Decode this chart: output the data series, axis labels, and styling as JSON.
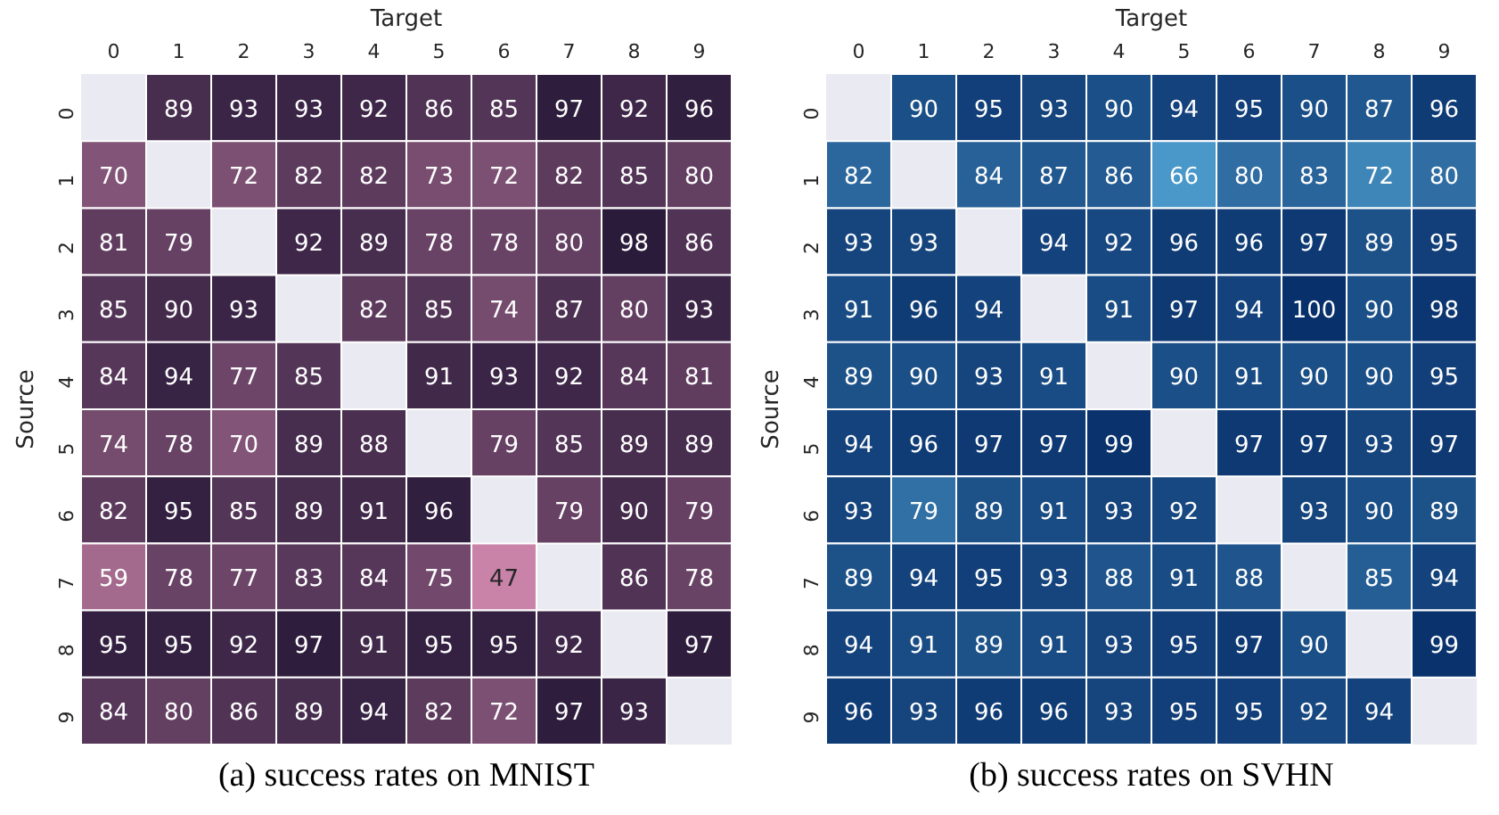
{
  "chart_data": [
    {
      "type": "heatmap",
      "xlabel": "Target",
      "ylabel": "Source",
      "annotations": [
        "(a) success rates on MNIST"
      ],
      "data_labels": true,
      "colors": [
        "#c982a8",
        "#2b1b3b"
      ],
      "categories": [
        "0",
        "1",
        "2",
        "3",
        "4",
        "5",
        "6",
        "7",
        "8",
        "9"
      ],
      "y_categories": [
        "0",
        "1",
        "2",
        "3",
        "4",
        "5",
        "6",
        "7",
        "8",
        "9"
      ],
      "cells": [
        [
          null,
          89,
          93,
          93,
          92,
          86,
          85,
          97,
          92,
          96
        ],
        [
          70,
          null,
          72,
          82,
          82,
          73,
          72,
          82,
          85,
          80
        ],
        [
          81,
          79,
          null,
          92,
          89,
          78,
          78,
          80,
          98,
          86
        ],
        [
          85,
          90,
          93,
          null,
          82,
          85,
          74,
          87,
          80,
          93
        ],
        [
          84,
          94,
          77,
          85,
          null,
          91,
          93,
          92,
          84,
          81
        ],
        [
          74,
          78,
          70,
          89,
          88,
          null,
          79,
          85,
          89,
          89
        ],
        [
          82,
          95,
          85,
          89,
          91,
          96,
          null,
          79,
          90,
          79
        ],
        [
          59,
          78,
          77,
          83,
          84,
          75,
          47,
          null,
          86,
          78
        ],
        [
          95,
          95,
          92,
          97,
          91,
          95,
          95,
          92,
          null,
          97
        ],
        [
          84,
          80,
          86,
          89,
          94,
          82,
          72,
          97,
          93,
          null
        ]
      ]
    },
    {
      "type": "heatmap",
      "xlabel": "Target",
      "ylabel": "Source",
      "annotations": [
        "(b) success rates on SVHN"
      ],
      "data_labels": true,
      "colors": [
        "#4a98c9",
        "#08306b"
      ],
      "categories": [
        "0",
        "1",
        "2",
        "3",
        "4",
        "5",
        "6",
        "7",
        "8",
        "9"
      ],
      "y_categories": [
        "0",
        "1",
        "2",
        "3",
        "4",
        "5",
        "6",
        "7",
        "8",
        "9"
      ],
      "cells": [
        [
          null,
          90,
          95,
          93,
          90,
          94,
          95,
          90,
          87,
          96
        ],
        [
          82,
          null,
          84,
          87,
          86,
          66,
          80,
          83,
          72,
          80
        ],
        [
          93,
          93,
          null,
          94,
          92,
          96,
          96,
          97,
          89,
          95
        ],
        [
          91,
          96,
          94,
          null,
          91,
          97,
          94,
          100,
          90,
          98
        ],
        [
          89,
          90,
          93,
          91,
          null,
          90,
          91,
          90,
          90,
          95
        ],
        [
          94,
          96,
          97,
          97,
          99,
          null,
          97,
          97,
          93,
          97
        ],
        [
          93,
          79,
          89,
          91,
          93,
          92,
          null,
          93,
          90,
          89
        ],
        [
          89,
          94,
          95,
          93,
          88,
          91,
          88,
          null,
          85,
          94
        ],
        [
          94,
          91,
          89,
          91,
          93,
          95,
          97,
          90,
          null,
          99
        ],
        [
          96,
          93,
          96,
          96,
          93,
          95,
          95,
          92,
          94,
          null
        ]
      ]
    }
  ]
}
